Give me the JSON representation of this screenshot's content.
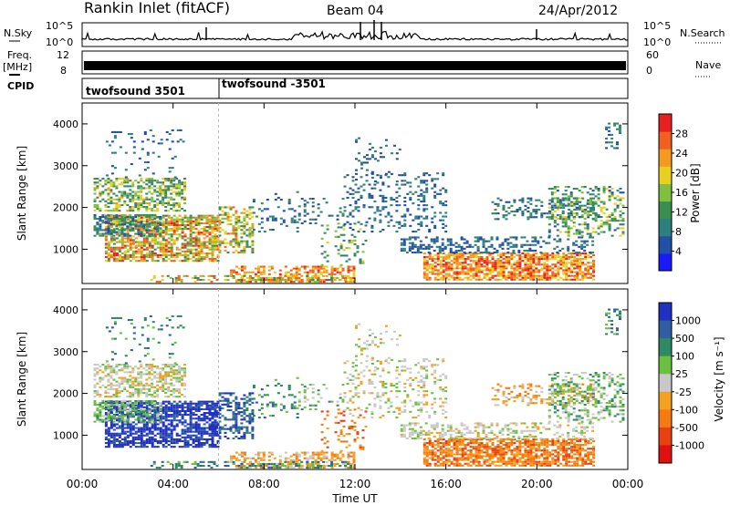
{
  "header": {
    "station": "Rankin Inlet (fitACF)",
    "beam": "Beam 04",
    "date": "24/Apr/2012"
  },
  "side_labels": {
    "nsky": "N.Sky",
    "freq_line1": "Freq.",
    "freq_line2": "[MHz]",
    "cpid": "CPID",
    "nsearch": "N.Search",
    "nave": "Nave"
  },
  "chart_data": [
    {
      "type": "line",
      "name": "noise-panel",
      "left_ticks": [
        "10^5",
        "10^0"
      ],
      "right_ticks": [
        "10^5",
        "10^0"
      ],
      "scale": "log"
    },
    {
      "type": "area",
      "name": "frequency-panel",
      "left_ticks": [
        "12",
        "8"
      ],
      "right_ticks": [
        "60",
        "0"
      ],
      "ylim": [
        8,
        12
      ]
    },
    {
      "type": "table",
      "name": "cpid-panel",
      "segments": [
        {
          "label": "twofsound 3501",
          "start_hour": 0
        },
        {
          "label": "twofsound -3501",
          "start_hour": 6
        }
      ]
    },
    {
      "type": "heatmap",
      "name": "power-panel",
      "ylabel": "Slant Range [km]",
      "ylim": [
        180,
        4500
      ],
      "xlim": [
        0,
        24
      ],
      "y_ticks": [
        1000,
        2000,
        3000,
        4000
      ],
      "colorbar": {
        "label": "Power [dB]",
        "ticks": [
          4,
          8,
          12,
          16,
          20,
          24,
          28
        ],
        "range": [
          0,
          32
        ]
      }
    },
    {
      "type": "heatmap",
      "name": "velocity-panel",
      "ylabel": "Slant Range [km]",
      "xlabel": "Time UT",
      "ylim": [
        180,
        4500
      ],
      "xlim": [
        0,
        24
      ],
      "y_ticks": [
        1000,
        2000,
        3000,
        4000
      ],
      "x_tick_labels": [
        "00:00",
        "04:00",
        "08:00",
        "12:00",
        "16:00",
        "20:00",
        "00:00"
      ],
      "x_ticks": [
        0,
        4,
        8,
        12,
        16,
        20,
        24
      ],
      "colorbar": {
        "label": "Velocity [m s⁻¹]",
        "ticks": [
          "1000",
          "500",
          "100",
          "25",
          "-25",
          "-100",
          "-500",
          "-1000"
        ]
      }
    }
  ]
}
